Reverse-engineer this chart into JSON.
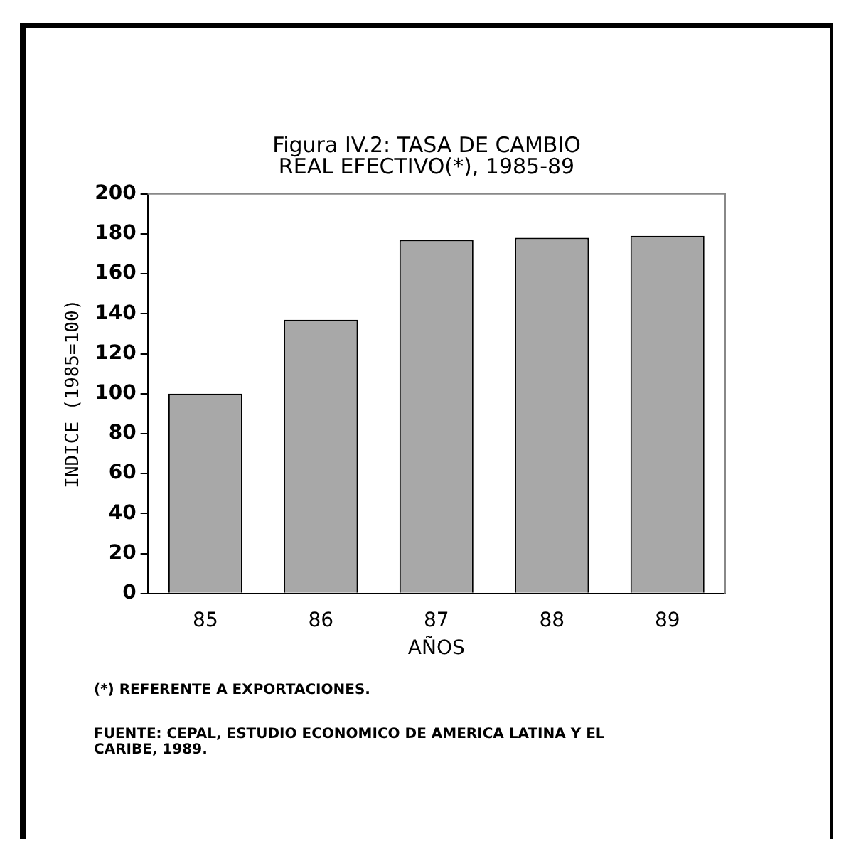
{
  "chart_data": {
    "type": "bar",
    "title": "Figura IV.2: TASA DE CAMBIO REAL EFECTIVO(*), 1985-89",
    "xlabel": "AÑOS",
    "ylabel": "INDICE (1985=100)",
    "categories": [
      "85",
      "86",
      "87",
      "88",
      "89"
    ],
    "values": [
      100,
      137,
      177,
      178,
      179
    ],
    "color": "#a8a8a8",
    "ylim": [
      0,
      200
    ],
    "yticks": [
      0,
      20,
      40,
      60,
      80,
      100,
      120,
      140,
      160,
      180,
      200
    ],
    "grid": false,
    "legend": false,
    "annotations": [
      "(*) REFERENTE A EXPORTACIONES.",
      "FUENTE: CEPAL, ESTUDIO ECONOMICO DE AMERICA LATINA Y EL CARIBE, 1989."
    ]
  }
}
